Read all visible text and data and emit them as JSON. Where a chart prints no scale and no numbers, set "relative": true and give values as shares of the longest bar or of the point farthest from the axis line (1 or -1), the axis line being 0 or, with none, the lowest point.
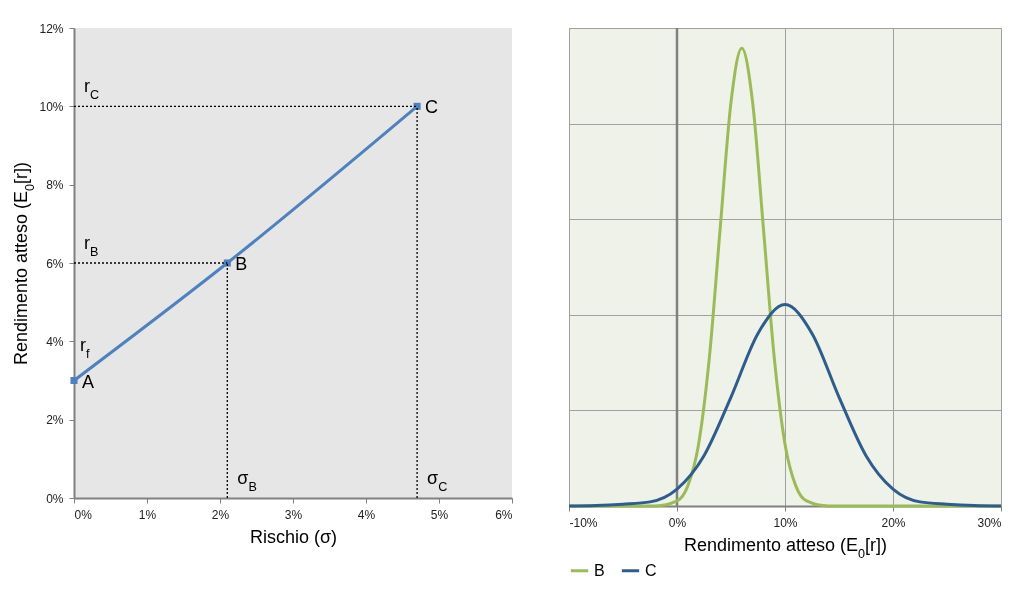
{
  "chart_data": [
    {
      "type": "line",
      "xlabel": "Rischio (σ)",
      "ylabel": "Rendimento atteso (E$_{0}$[r])",
      "xlim": [
        0,
        6
      ],
      "xticks": [
        {
          "value": 0,
          "label": "0%"
        },
        {
          "value": 1,
          "label": "1%"
        },
        {
          "value": 2,
          "label": "2%"
        },
        {
          "value": 3,
          "label": "3%"
        },
        {
          "value": 4,
          "label": "4%"
        },
        {
          "value": 5,
          "label": "5%"
        },
        {
          "value": 6,
          "label": "6%"
        }
      ],
      "ylim": [
        0,
        12
      ],
      "yticks": [
        {
          "value": 0,
          "label": "0%"
        },
        {
          "value": 2,
          "label": "2%"
        },
        {
          "value": 4,
          "label": "4%"
        },
        {
          "value": 6,
          "label": "6%"
        },
        {
          "value": 8,
          "label": "8%"
        },
        {
          "value": 10,
          "label": "10%"
        },
        {
          "value": 12,
          "label": "12%"
        }
      ],
      "series": [
        {
          "color": "#4f81bd",
          "x": [
            0,
            2.1,
            4.7
          ],
          "values": [
            3,
            6,
            10
          ],
          "marker": "square",
          "line_style": "solid"
        },
        {
          "color": "#000000",
          "x": [
            0,
            4.7
          ],
          "values": [
            10,
            10
          ],
          "marker": "none",
          "line_style": "dotted"
        },
        {
          "color": "#000000",
          "x": [
            0,
            2.1
          ],
          "values": [
            6,
            6
          ],
          "marker": "none",
          "line_style": "dotted"
        },
        {
          "color": "#000000",
          "x": [
            2.1,
            2.1
          ],
          "values": [
            0,
            6
          ],
          "marker": "none",
          "line_style": "dotted"
        },
        {
          "color": "#000000",
          "x": [
            4.7,
            4.7
          ],
          "values": [
            0,
            10
          ],
          "marker": "none",
          "line_style": "dotted"
        }
      ],
      "annotations": [
        {
          "text": "A",
          "x": 0,
          "y": 3
        },
        {
          "text": "B",
          "x": 2.1,
          "y": 6
        },
        {
          "text": "C",
          "x": 4.7,
          "y": 10
        },
        {
          "text": "r$_{C}$",
          "x": 0,
          "y": 10
        },
        {
          "text": "r$_{B}$",
          "x": 0,
          "y": 6
        },
        {
          "text": "r$_{f}$",
          "x": 0,
          "y": 3
        },
        {
          "text": "σ$_{B}$",
          "x": 2.1,
          "y": 0
        },
        {
          "text": "σ$_{C}$",
          "x": 4.7,
          "y": 0
        }
      ]
    },
    {
      "type": "line",
      "xlabel": "Rendimento atteso (E$_{0}$[r])",
      "relative": true,
      "grid": true,
      "legend": "bottom",
      "xlim": [
        -10,
        30
      ],
      "xticks": [
        {
          "value": -10,
          "label": "-10%"
        },
        {
          "value": 0,
          "label": "0%"
        },
        {
          "value": 10,
          "label": "10%"
        },
        {
          "value": 20,
          "label": "20%"
        },
        {
          "value": 30,
          "label": "30%"
        }
      ],
      "ref_lines": [
        {
          "axis": "x",
          "value": 0,
          "color": "#808080"
        }
      ],
      "series": [
        {
          "name": "B",
          "color": "#9bbb59",
          "x": [
            -10,
            -2,
            0,
            1,
            2,
            3,
            4,
            5,
            6,
            7,
            8,
            9,
            10,
            11,
            12,
            14,
            30
          ],
          "values": [
            0,
            0,
            0.011,
            0.044,
            0.135,
            0.325,
            0.607,
            0.882,
            1,
            0.882,
            0.607,
            0.325,
            0.135,
            0.044,
            0.011,
            0,
            0
          ]
        },
        {
          "name": "C",
          "color": "#2e5d8c",
          "x": [
            -10,
            -7.5,
            -5,
            -2.5,
            0,
            2.5,
            5,
            7.5,
            10,
            12.5,
            15,
            17.5,
            20,
            22.5,
            25,
            27.5,
            30
          ],
          "values": [
            0,
            0.001,
            0.004,
            0.009,
            0.037,
            0.11,
            0.238,
            0.377,
            0.44,
            0.377,
            0.238,
            0.11,
            0.037,
            0.009,
            0.004,
            0.001,
            0
          ]
        }
      ]
    }
  ]
}
